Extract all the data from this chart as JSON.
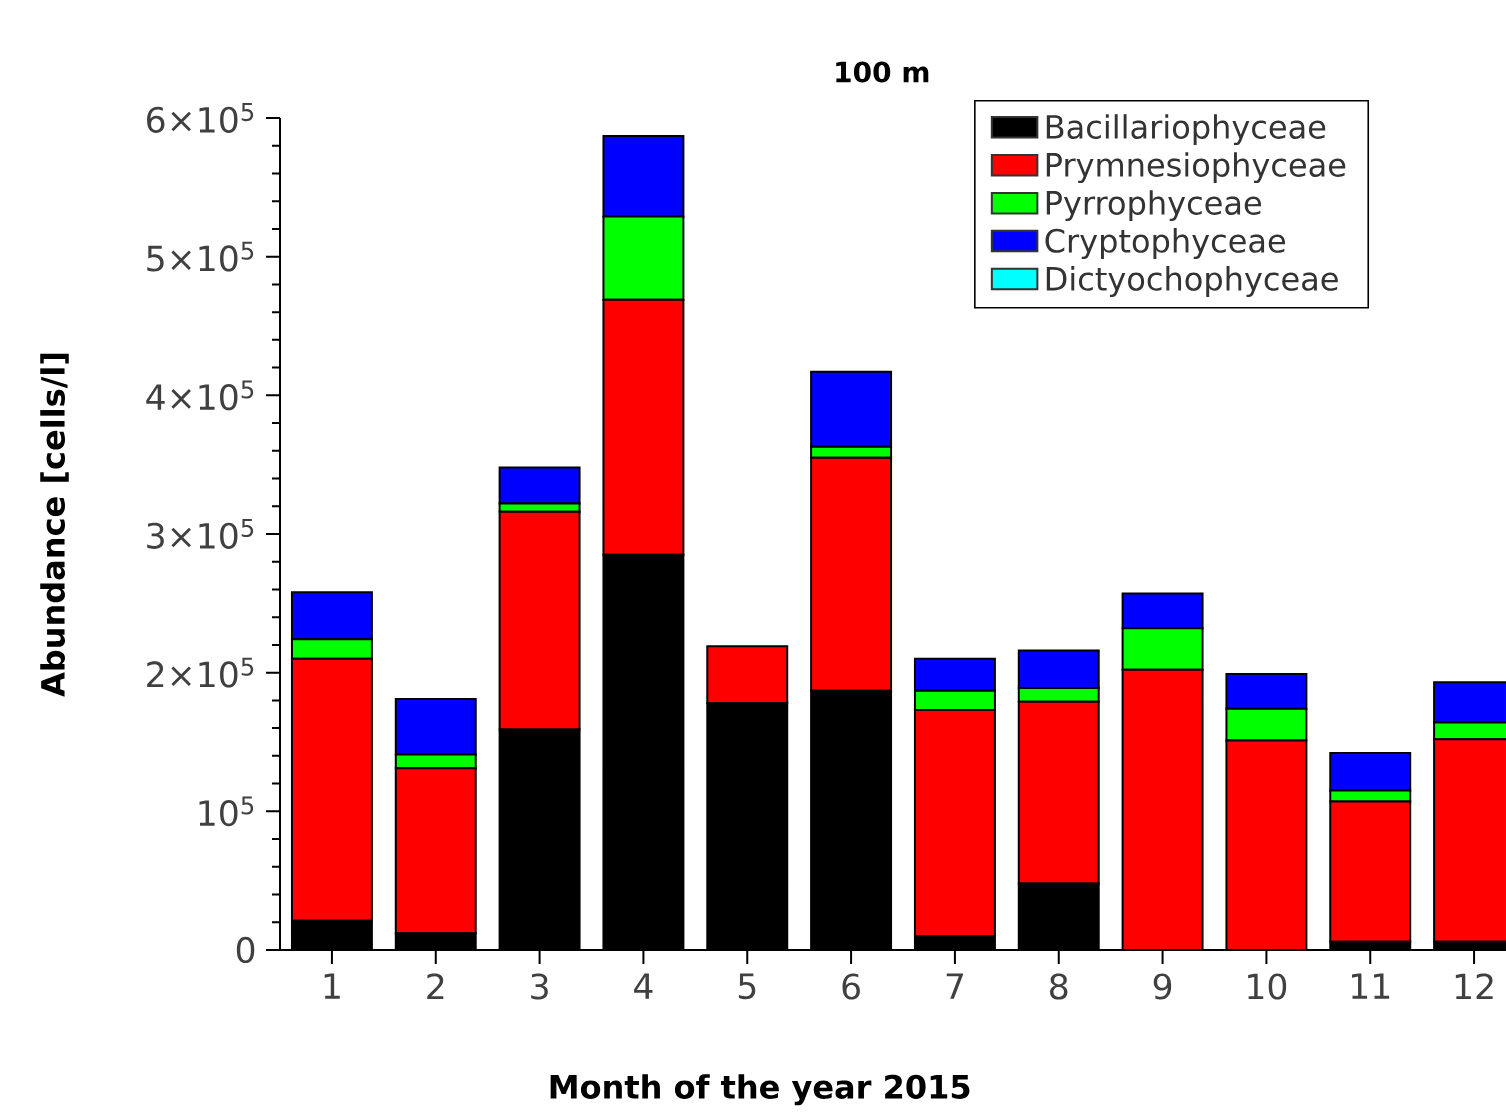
{
  "chart_data": {
    "type": "bar",
    "stacked": true,
    "title": "100 m",
    "xlabel": "Month of the year 2015",
    "ylabel": "Abundance [cells/l]",
    "categories": [
      "1",
      "2",
      "3",
      "4",
      "5",
      "6",
      "7",
      "8",
      "9",
      "10",
      "11",
      "12"
    ],
    "series": [
      {
        "name": "Bacillariophyceae",
        "color": "#000000",
        "values": [
          21000,
          12000,
          159000,
          285000,
          178000,
          187000,
          10000,
          48000,
          0,
          null,
          6000,
          6000
        ]
      },
      {
        "name": "Prymnesiophyceae",
        "color": "#ff0000",
        "values": [
          189000,
          119000,
          157000,
          184000,
          41000,
          168000,
          163000,
          131000,
          202000,
          151000,
          101000,
          146000
        ]
      },
      {
        "name": "Pyrrophyceae",
        "color": "#00ff00",
        "values": [
          14000,
          10000,
          6000,
          60000,
          0,
          8000,
          14000,
          10000,
          30000,
          23000,
          8000,
          12000
        ]
      },
      {
        "name": "Cryptophyceae",
        "color": "#0000ff",
        "values": [
          34000,
          40000,
          26000,
          58000,
          0,
          54000,
          23000,
          27000,
          25000,
          25000,
          27000,
          29000
        ]
      },
      {
        "name": "Dictyochophyceae",
        "color": "#00ffff",
        "values": [
          0,
          0,
          0,
          0,
          0,
          0,
          0,
          0,
          0,
          0,
          0,
          0
        ]
      }
    ],
    "ylim": [
      0,
      600000
    ],
    "yticks": [
      0,
      {
        "value": 100000,
        "label": "10$^{5}$"
      },
      {
        "value": 200000,
        "label": "2×10$^{5}$"
      },
      {
        "value": 300000,
        "label": "3×10$^{5}$"
      },
      {
        "value": 400000,
        "label": "4×10$^{5}$"
      },
      {
        "value": 500000,
        "label": "5×10$^{5}$"
      },
      {
        "value": 600000,
        "label": "6×10$^{5}$"
      }
    ],
    "legend": "top right"
  }
}
